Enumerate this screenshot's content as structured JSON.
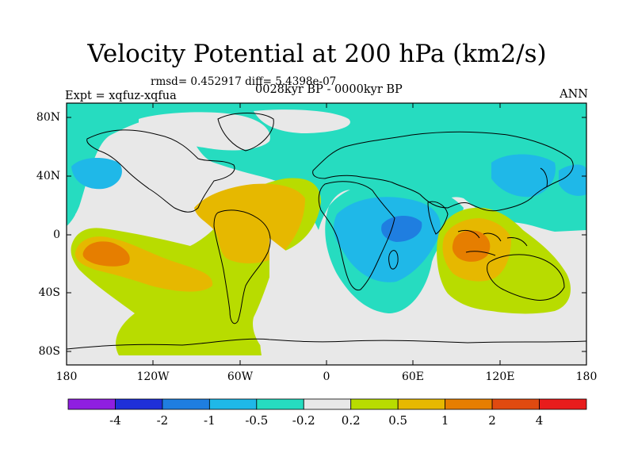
{
  "title": "Velocity Potential at 200 hPa (km2/s)",
  "stats_line": "rmsd= 0.452917 diff= 5.4398e-07",
  "experiment": "Expt = xqfuz-xqfua",
  "period": "0028kyr BP - 0000kyr BP",
  "season": "ANN",
  "map": {
    "y_ticks": [
      "80N",
      "40N",
      "0",
      "40S",
      "80S"
    ],
    "x_ticks": [
      "180",
      "120W",
      "60W",
      "0",
      "60E",
      "120E",
      "180"
    ]
  },
  "colorbar": {
    "labels": [
      "-4",
      "-2",
      "-1",
      "-0.5",
      "-0.2",
      "0.2",
      "0.5",
      "1",
      "2",
      "4"
    ],
    "colors": [
      "#8f1fe0",
      "#1f2fd8",
      "#1f7ee0",
      "#1fb8e8",
      "#26dcc0",
      "#e8e8e8",
      "#b8dc00",
      "#e6b800",
      "#e67e00",
      "#e04a10",
      "#e81c1c"
    ]
  }
}
